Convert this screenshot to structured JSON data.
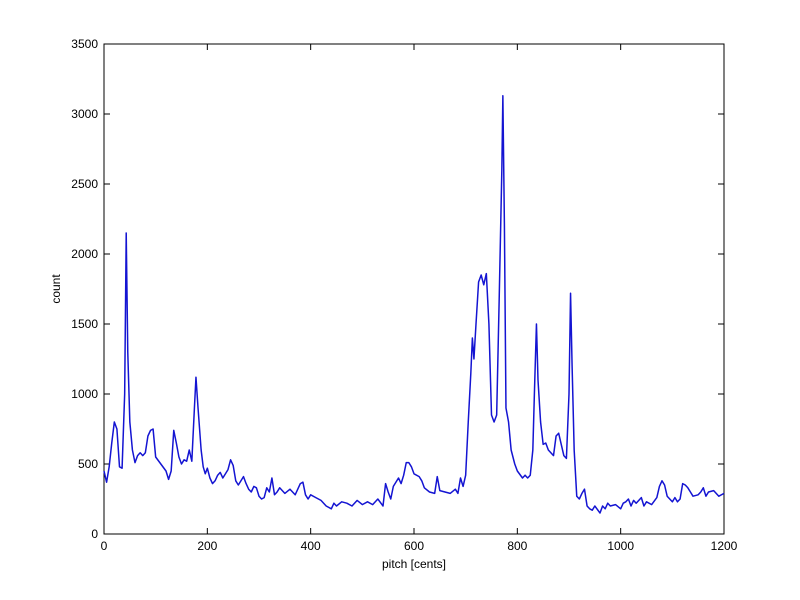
{
  "chart_data": {
    "type": "line",
    "xlabel": "pitch [cents]",
    "ylabel": "count",
    "xlim": [
      0,
      1200
    ],
    "ylim": [
      0,
      3500
    ],
    "xticks": [
      0,
      200,
      400,
      600,
      800,
      1000,
      1200
    ],
    "yticks": [
      0,
      500,
      1000,
      1500,
      2000,
      2500,
      3000,
      3500
    ],
    "x": [
      0,
      5,
      10,
      15,
      20,
      25,
      30,
      35,
      40,
      43,
      46,
      50,
      55,
      60,
      65,
      70,
      75,
      80,
      85,
      90,
      95,
      100,
      110,
      120,
      125,
      130,
      135,
      140,
      145,
      150,
      155,
      160,
      165,
      170,
      175,
      178,
      182,
      188,
      192,
      196,
      200,
      205,
      210,
      215,
      220,
      225,
      230,
      240,
      245,
      250,
      255,
      260,
      270,
      275,
      280,
      285,
      290,
      295,
      300,
      305,
      310,
      315,
      320,
      325,
      330,
      335,
      340,
      350,
      360,
      365,
      370,
      375,
      380,
      385,
      390,
      395,
      400,
      410,
      420,
      430,
      440,
      445,
      450,
      460,
      470,
      480,
      490,
      500,
      510,
      520,
      530,
      540,
      545,
      550,
      555,
      560,
      570,
      575,
      580,
      585,
      590,
      595,
      600,
      610,
      615,
      620,
      630,
      640,
      645,
      650,
      660,
      670,
      680,
      685,
      690,
      695,
      700,
      705,
      710,
      713,
      716,
      720,
      725,
      730,
      735,
      740,
      745,
      750,
      755,
      760,
      765,
      770,
      772,
      775,
      778,
      783,
      788,
      795,
      800,
      810,
      815,
      820,
      825,
      830,
      833,
      837,
      840,
      845,
      850,
      855,
      860,
      870,
      875,
      880,
      885,
      890,
      895,
      900,
      903,
      906,
      910,
      915,
      920,
      925,
      930,
      935,
      940,
      945,
      950,
      960,
      965,
      970,
      975,
      980,
      990,
      1000,
      1005,
      1010,
      1015,
      1020,
      1025,
      1030,
      1040,
      1045,
      1050,
      1060,
      1070,
      1075,
      1080,
      1085,
      1090,
      1100,
      1105,
      1110,
      1115,
      1120,
      1125,
      1130,
      1135,
      1140,
      1150,
      1155,
      1160,
      1165,
      1170,
      1180,
      1190,
      1200
    ],
    "series": [
      {
        "color": "#1414d2",
        "values": [
          450,
          370,
          480,
          650,
          800,
          750,
          480,
          470,
          1000,
          2150,
          1300,
          800,
          600,
          510,
          560,
          580,
          560,
          580,
          700,
          740,
          750,
          550,
          500,
          450,
          390,
          450,
          740,
          650,
          550,
          500,
          530,
          520,
          600,
          520,
          900,
          1120,
          900,
          600,
          480,
          430,
          470,
          400,
          360,
          380,
          420,
          440,
          400,
          460,
          530,
          490,
          380,
          350,
          410,
          360,
          320,
          300,
          340,
          330,
          270,
          250,
          260,
          330,
          300,
          400,
          280,
          300,
          330,
          290,
          320,
          300,
          280,
          320,
          360,
          370,
          280,
          250,
          280,
          260,
          240,
          200,
          180,
          220,
          200,
          230,
          220,
          200,
          240,
          210,
          230,
          210,
          250,
          200,
          360,
          300,
          250,
          340,
          400,
          360,
          420,
          510,
          510,
          480,
          430,
          410,
          380,
          330,
          300,
          290,
          410,
          310,
          300,
          290,
          320,
          290,
          400,
          340,
          420,
          800,
          1150,
          1400,
          1250,
          1500,
          1800,
          1850,
          1780,
          1860,
          1500,
          850,
          800,
          850,
          1700,
          2600,
          3130,
          2200,
          900,
          800,
          600,
          500,
          450,
          400,
          420,
          400,
          420,
          600,
          1000,
          1500,
          1100,
          800,
          640,
          650,
          600,
          560,
          700,
          720,
          640,
          560,
          540,
          1000,
          1720,
          1200,
          600,
          270,
          250,
          290,
          320,
          200,
          180,
          170,
          200,
          150,
          200,
          180,
          220,
          200,
          210,
          180,
          220,
          230,
          250,
          200,
          240,
          220,
          260,
          200,
          230,
          210,
          260,
          340,
          380,
          350,
          270,
          230,
          260,
          230,
          250,
          360,
          350,
          330,
          300,
          270,
          280,
          300,
          330,
          270,
          300,
          310,
          270,
          290
        ]
      }
    ]
  }
}
